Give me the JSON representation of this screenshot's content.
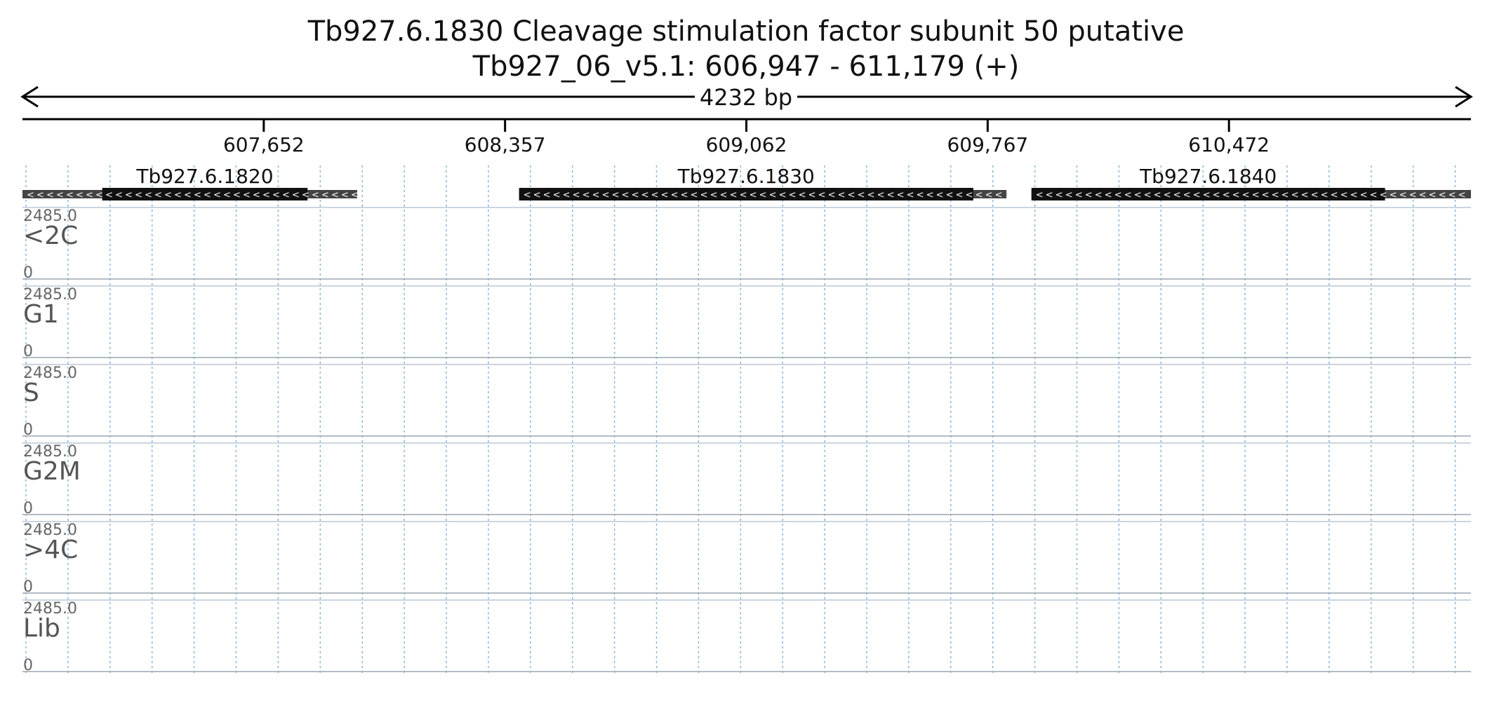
{
  "header": {
    "title": "Tb927.6.1830  Cleavage stimulation factor subunit 50  putative",
    "subtitle": "Tb927_06_v5.1: 606,947 - 611,179 (+)",
    "length_label": "4232 bp"
  },
  "chart_data": {
    "type": "bar",
    "title": "Tb927.6.1830  Cleavage stimulation factor subunit 50  putative",
    "region": {
      "chromosome": "Tb927_06_v5.1",
      "start": 606947,
      "end": 611179,
      "strand": "+"
    },
    "x_ticks": [
      {
        "value": 607652,
        "label": "607,652"
      },
      {
        "value": 608357,
        "label": "608,357"
      },
      {
        "value": 609062,
        "label": "609,062"
      },
      {
        "value": 609767,
        "label": "609,767"
      },
      {
        "value": 610472,
        "label": "610,472"
      }
    ],
    "genes": [
      {
        "name": "Tb927.6.1820",
        "utr_start": 606947,
        "cds_start": 607180,
        "cds_end": 607780,
        "utr_end": 607925,
        "strand": "-"
      },
      {
        "name": "Tb927.6.1830",
        "utr_start": 608398,
        "cds_start": 608398,
        "cds_end": 609725,
        "utr_end": 609822,
        "strand": "-"
      },
      {
        "name": "Tb927.6.1840",
        "utr_start": 609895,
        "cds_start": 609895,
        "cds_end": 610928,
        "utr_end": 611179,
        "strand": "-"
      }
    ],
    "ylim": [
      0,
      2485
    ],
    "ymax_label": "2485.0",
    "ymin_label": "0",
    "grid": "vertical-dotted",
    "bin_count": 80,
    "tracks": [
      {
        "name": "<2C",
        "color": "#fbb15f",
        "values": [
          0,
          0,
          0,
          0,
          0,
          0,
          0,
          0,
          0,
          0,
          0,
          0,
          0,
          0,
          0,
          0,
          0,
          0,
          0,
          0,
          0,
          0,
          0,
          0,
          0,
          0,
          0,
          0,
          0,
          0,
          0,
          0,
          0,
          0,
          0,
          0,
          0,
          0,
          0,
          0,
          0,
          0,
          0,
          0,
          0,
          0,
          0,
          0,
          0,
          0,
          0,
          0,
          0,
          0,
          0,
          0,
          0,
          0,
          0,
          0,
          0,
          0,
          0,
          0,
          0,
          0,
          0,
          0,
          0,
          0,
          0,
          0,
          0,
          0,
          0,
          0,
          0,
          0,
          0,
          0
        ]
      },
      {
        "name": "G1",
        "color": "#c497c9",
        "values": [
          0,
          0,
          0,
          0,
          0,
          0,
          0,
          0,
          0,
          0,
          0,
          0,
          0,
          0,
          0,
          0,
          0,
          0,
          0,
          0,
          0,
          0,
          0,
          0,
          0,
          0,
          0,
          0,
          0,
          0,
          0,
          0,
          0,
          0,
          0,
          0,
          0,
          0,
          0,
          0,
          0,
          0,
          0,
          0,
          0,
          0,
          0,
          0,
          0,
          0,
          0,
          0,
          0,
          0,
          0,
          0,
          0,
          0,
          0,
          0,
          0,
          0,
          0,
          0,
          0,
          0,
          0,
          0,
          0,
          0,
          0,
          0,
          0,
          0,
          0,
          0,
          0,
          0,
          0,
          0
        ]
      },
      {
        "name": "S",
        "color": "#7fcc7a",
        "values": [
          0,
          0,
          0,
          0,
          0,
          0,
          0,
          0,
          0,
          0,
          0,
          0,
          0,
          0,
          0,
          0,
          0,
          0,
          0,
          0,
          0,
          0,
          0,
          0,
          0,
          0,
          0,
          0,
          0,
          0,
          0,
          0,
          0,
          0,
          0,
          0,
          0,
          0,
          0,
          0,
          0,
          0,
          0,
          0,
          0,
          0,
          0,
          0,
          0,
          0,
          0,
          0,
          0,
          0,
          0,
          0,
          0,
          0,
          0,
          0,
          0,
          0,
          0,
          0,
          0,
          0,
          0,
          0,
          0,
          0,
          0,
          0,
          0,
          0,
          0,
          0,
          0,
          0,
          0,
          0
        ]
      },
      {
        "name": "G2M",
        "color": "#7eb6e6",
        "values": [
          0,
          0,
          0,
          0,
          0,
          0,
          0,
          0,
          0,
          0,
          0,
          0,
          0,
          0,
          0,
          0,
          0,
          0,
          0,
          0,
          0,
          0,
          0,
          0,
          0,
          0,
          0,
          0,
          0,
          0,
          0,
          0,
          0,
          0,
          0,
          0,
          0,
          0,
          0,
          0,
          0,
          0,
          0,
          0,
          0,
          0,
          0,
          0,
          0,
          0,
          0,
          0,
          0,
          0,
          0,
          0,
          0,
          0,
          0,
          0,
          0,
          0,
          0,
          0,
          0,
          0,
          0,
          0,
          0,
          0,
          0,
          0,
          0,
          0,
          0,
          0,
          0,
          0,
          0,
          0
        ]
      },
      {
        "name": ">4C",
        "color": "#f59ac8",
        "values": [
          0,
          0,
          0,
          0,
          0,
          0,
          0,
          0,
          0,
          0,
          0,
          0,
          0,
          0,
          0,
          0,
          0,
          0,
          0,
          0,
          0,
          0,
          0,
          0,
          0,
          0,
          0,
          0,
          0,
          0,
          0,
          0,
          0,
          0,
          0,
          0,
          0,
          0,
          0,
          0,
          0,
          0,
          0,
          0,
          0,
          0,
          0,
          0,
          0,
          0,
          0,
          0,
          0,
          0,
          0,
          0,
          0,
          0,
          0,
          0,
          0,
          0,
          0,
          0,
          0,
          0,
          0,
          0,
          0,
          0,
          0,
          0,
          0,
          0,
          0,
          0,
          0,
          0,
          0,
          0
        ]
      },
      {
        "name": "Lib",
        "color": "#e6dc6a",
        "values": [
          0,
          0,
          0,
          0,
          0,
          0,
          0,
          0,
          0,
          0,
          0,
          0,
          0,
          0,
          0,
          0,
          0,
          0,
          0,
          0,
          0,
          0,
          0,
          0,
          0,
          0,
          0,
          0,
          0,
          0,
          0,
          0,
          0,
          0,
          0,
          0,
          0,
          0,
          0,
          0,
          0,
          0,
          0,
          0,
          0,
          0,
          0,
          0,
          0,
          0,
          0,
          0,
          0,
          0,
          0,
          0,
          0,
          0,
          0,
          0,
          0,
          0,
          0,
          0,
          0,
          0,
          0,
          0,
          0,
          0,
          0,
          0,
          0,
          0,
          0,
          0,
          0,
          0,
          0,
          0
        ]
      }
    ]
  }
}
